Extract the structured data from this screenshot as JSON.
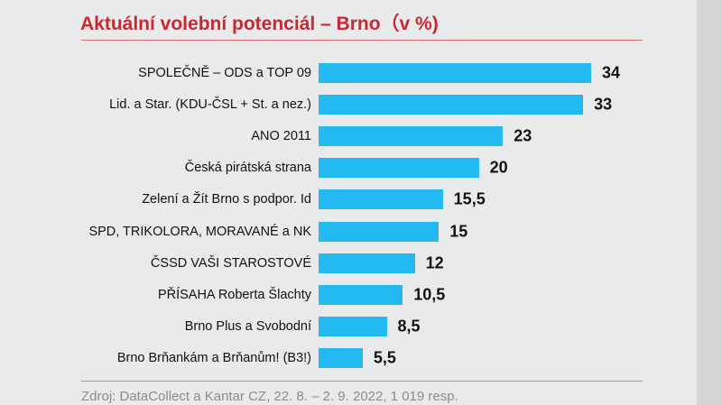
{
  "chart_data": {
    "type": "bar",
    "orientation": "horizontal",
    "title": "Aktuální volební potenciál – Brno（v %)",
    "categories": [
      "SPOLEČNĚ – ODS a TOP 09",
      "Lid. a Star. (KDU-ČSL + St. a nez.)",
      "ANO 2011",
      "Česká pirátská strana",
      "Zelení a Žít Brno s podpor. Id",
      "SPD, TRIKOLORA, MORAVANÉ a NK",
      "ČSSD VAŠI STAROSTOVÉ",
      "PŘÍSAHA Roberta Šlachty",
      "Brno Plus a Svobodní",
      "Brno Brňankám a Brňanům! (B3!)"
    ],
    "values": [
      34,
      33,
      23,
      20,
      15.5,
      15,
      12,
      10.5,
      8.5,
      5.5
    ],
    "value_labels": [
      "34",
      "33",
      "23",
      "20",
      "15,5",
      "15",
      "12",
      "10,5",
      "8,5",
      "5,5"
    ],
    "bar_color": "#23b9f2",
    "title_color": "#c62a2f",
    "grid": false,
    "source": "Zdroj: DataCollect a Kantar CZ, 22. 8. – 2. 9. 2022, 1 019 resp."
  }
}
